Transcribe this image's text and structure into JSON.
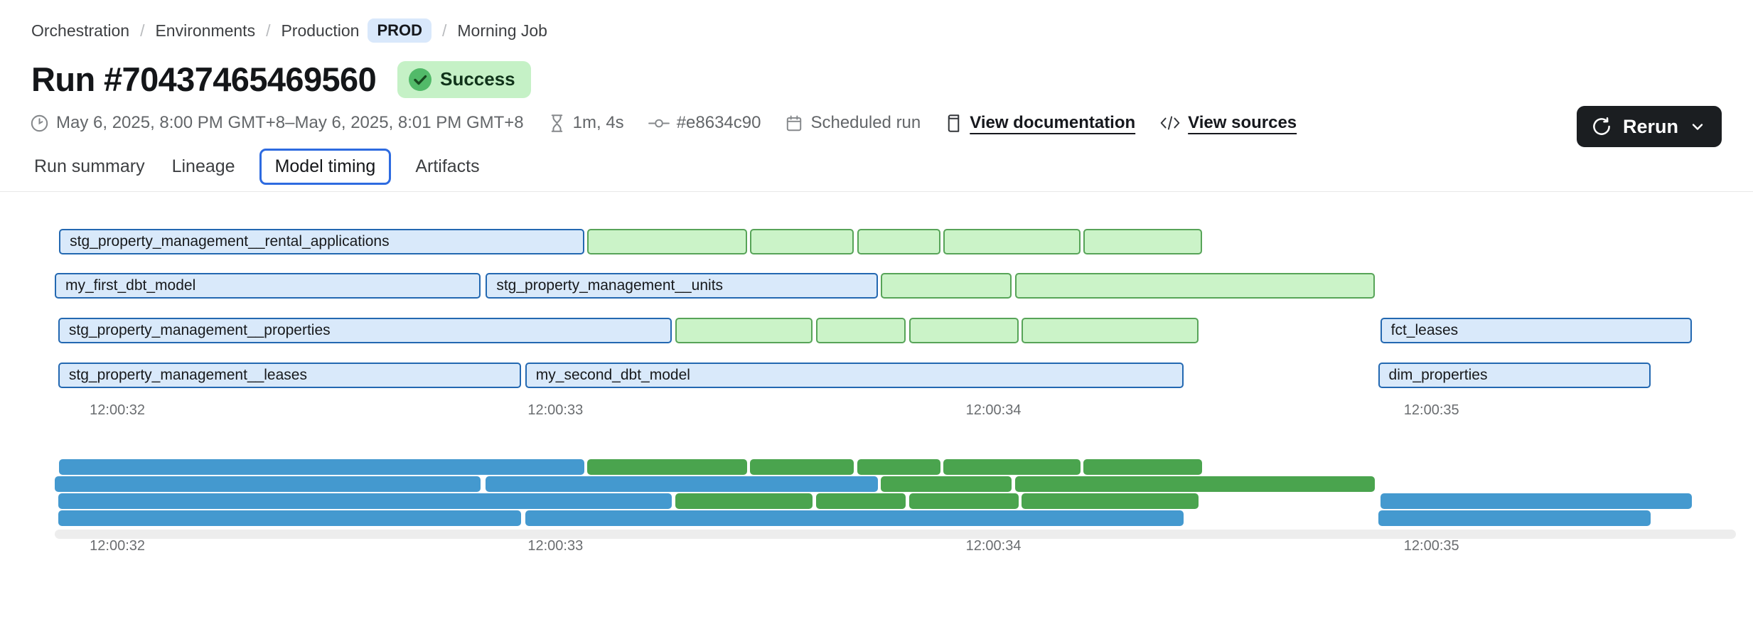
{
  "breadcrumb": {
    "separator": "/",
    "items": [
      {
        "label": "Orchestration"
      },
      {
        "label": "Environments"
      },
      {
        "label": "Production",
        "badge": "PROD"
      },
      {
        "label": "Morning Job"
      }
    ]
  },
  "header": {
    "title": "Run #70437465469560",
    "status_label": "Success"
  },
  "actions": {
    "rerun_label": "Rerun"
  },
  "meta": {
    "date_range": "May 6, 2025, 8:00 PM GMT+8–May 6, 2025, 8:01 PM GMT+8",
    "duration": "1m, 4s",
    "commit_sha": "#e8634c90",
    "trigger": "Scheduled run",
    "documentation_link": "View documentation",
    "sources_link": "View sources"
  },
  "tabs": {
    "items": [
      "Run summary",
      "Lineage",
      "Model timing",
      "Artifacts"
    ],
    "active": "Model timing"
  },
  "chart_data": {
    "type": "gantt",
    "title": "Model timing",
    "axis": {
      "start": 31.857,
      "end": 35.695,
      "unit": "seconds after 12:00:00",
      "ticks": [
        {
          "t": 32,
          "label": "12:00:32"
        },
        {
          "t": 33,
          "label": "12:00:33"
        },
        {
          "t": 34,
          "label": "12:00:34"
        },
        {
          "t": 35,
          "label": "12:00:35"
        }
      ]
    },
    "colors": {
      "model_fill": "#d9e9fa",
      "model_border": "#2368b1",
      "test_fill": "#cbf3c8",
      "test_border": "#57a458",
      "overview_model": "#4499cf",
      "overview_test": "#4aa44e"
    },
    "rows": [
      {
        "bars": [
          {
            "label": "stg_property_management__rental_applications",
            "kind": "model",
            "start": 31.867,
            "end": 33.066
          },
          {
            "label": "",
            "kind": "test",
            "start": 33.073,
            "end": 33.438
          },
          {
            "label": "",
            "kind": "test",
            "start": 33.444,
            "end": 33.681
          },
          {
            "label": "",
            "kind": "test",
            "start": 33.689,
            "end": 33.879
          },
          {
            "label": "",
            "kind": "test",
            "start": 33.886,
            "end": 34.198
          },
          {
            "label": "",
            "kind": "test",
            "start": 34.205,
            "end": 34.476
          }
        ]
      },
      {
        "bars": [
          {
            "label": "my_first_dbt_model",
            "kind": "model",
            "start": 31.857,
            "end": 32.829
          },
          {
            "label": "stg_property_management__units",
            "kind": "model",
            "start": 32.841,
            "end": 33.736
          },
          {
            "label": "",
            "kind": "test",
            "start": 33.743,
            "end": 34.041
          },
          {
            "label": "",
            "kind": "test",
            "start": 34.049,
            "end": 34.87
          }
        ]
      },
      {
        "bars": [
          {
            "label": "stg_property_management__properties",
            "kind": "model",
            "start": 31.865,
            "end": 33.266
          },
          {
            "label": "",
            "kind": "test",
            "start": 33.274,
            "end": 33.587
          },
          {
            "label": "",
            "kind": "test",
            "start": 33.595,
            "end": 33.8
          },
          {
            "label": "",
            "kind": "test",
            "start": 33.808,
            "end": 34.058
          },
          {
            "label": "",
            "kind": "test",
            "start": 34.064,
            "end": 34.468
          },
          {
            "label": "fct_leases",
            "kind": "model",
            "start": 34.883,
            "end": 35.594
          }
        ]
      },
      {
        "bars": [
          {
            "label": "stg_property_management__leases",
            "kind": "model",
            "start": 31.865,
            "end": 32.922
          },
          {
            "label": "my_second_dbt_model",
            "kind": "model",
            "start": 32.931,
            "end": 34.434
          },
          {
            "label": "dim_properties",
            "kind": "model",
            "start": 34.878,
            "end": 35.501
          }
        ]
      }
    ]
  }
}
